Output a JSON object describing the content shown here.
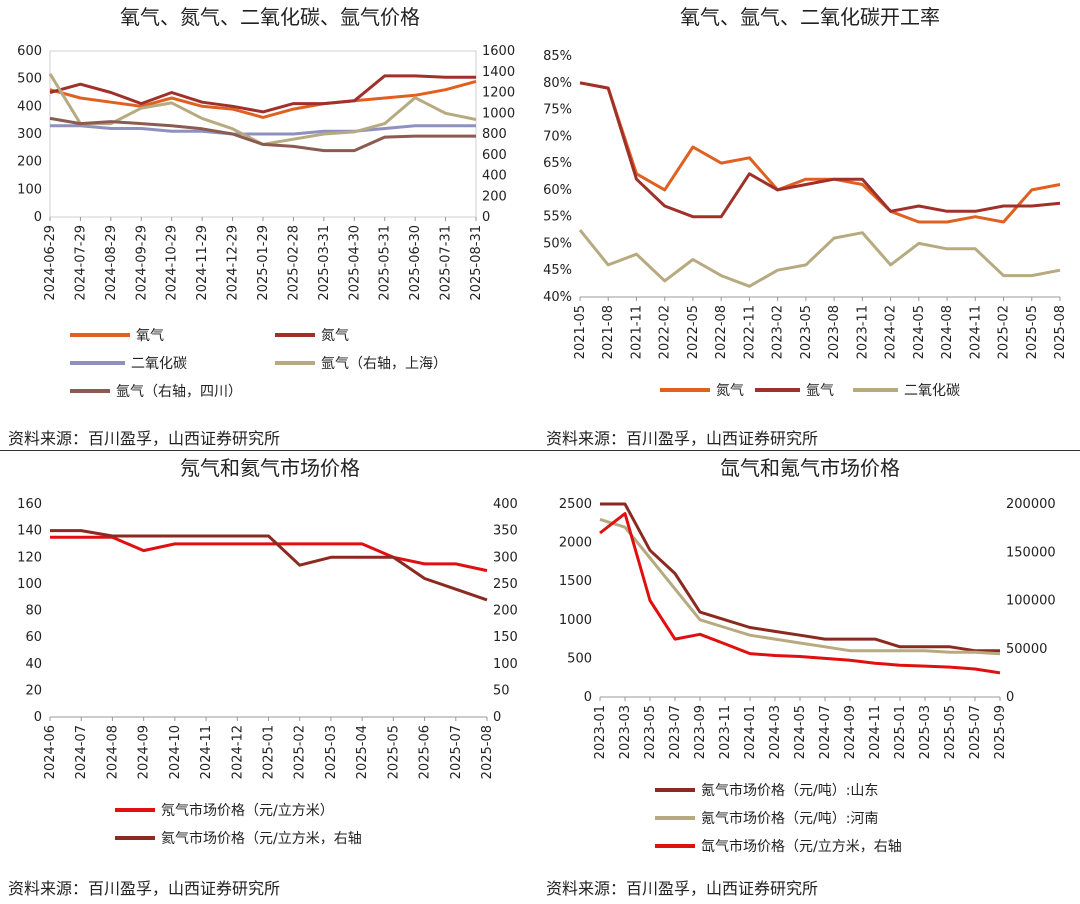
{
  "chart_data": [
    {
      "id": "p1",
      "type": "line",
      "title": "氧气、氮气、二氧化碳、氩气价格",
      "xlabel": "",
      "ylabel": "",
      "x": [
        "2024-06-29",
        "2024-07-29",
        "2024-08-29",
        "2024-09-29",
        "2024-10-29",
        "2024-11-29",
        "2024-12-29",
        "2025-01-29",
        "2025-02-28",
        "2025-03-31",
        "2025-04-30",
        "2025-05-31",
        "2025-06-30",
        "2025-07-31",
        "2025-08-31"
      ],
      "ylim": [
        0,
        600
      ],
      "y_ticks": [
        "0",
        "100",
        "200",
        "300",
        "400",
        "500",
        "600"
      ],
      "y2lim": [
        0,
        1600
      ],
      "y2_ticks": [
        "0",
        "200",
        "400",
        "600",
        "800",
        "1000",
        "1200",
        "1400",
        "1600"
      ],
      "legend_position": "bottom",
      "series": [
        {
          "name": "氧气",
          "color": "#e06020",
          "axis": "left",
          "values": [
            460,
            430,
            415,
            400,
            430,
            400,
            390,
            360,
            390,
            410,
            420,
            430,
            440,
            460,
            490
          ]
        },
        {
          "name": "氮气",
          "color": "#a0302a",
          "axis": "left",
          "values": [
            450,
            480,
            450,
            410,
            450,
            415,
            400,
            380,
            410,
            410,
            420,
            510,
            510,
            505,
            505
          ]
        },
        {
          "name": "二氧化碳",
          "color": "#9090c0",
          "axis": "left",
          "values": [
            330,
            330,
            320,
            320,
            310,
            310,
            300,
            300,
            300,
            310,
            310,
            320,
            330,
            330,
            330
          ]
        },
        {
          "name": "氩气（右轴，上海）",
          "color": "#b8aa80",
          "axis": "right",
          "values": [
            1380,
            900,
            900,
            1050,
            1100,
            950,
            850,
            700,
            750,
            800,
            820,
            900,
            1150,
            1000,
            940
          ]
        },
        {
          "name": "氩气（右轴，四川）",
          "color": "#8b5a50",
          "axis": "right",
          "values": [
            950,
            900,
            920,
            900,
            880,
            850,
            800,
            700,
            680,
            640,
            640,
            770,
            780,
            780,
            780
          ]
        }
      ],
      "source": "资料来源：百川盈孚，山西证券研究所"
    },
    {
      "id": "p2",
      "type": "line",
      "title": "氧气、氩气、二氧化碳开工率",
      "xlabel": "",
      "ylabel": "",
      "x": [
        "2021-05",
        "2021-08",
        "2021-11",
        "2022-02",
        "2022-05",
        "2022-08",
        "2022-11",
        "2023-02",
        "2023-05",
        "2023-08",
        "2023-11",
        "2024-02",
        "2024-05",
        "2024-08",
        "2024-11",
        "2025-02",
        "2025-05",
        "2025-08"
      ],
      "ylim": [
        40,
        85
      ],
      "y_ticks": [
        "40%",
        "45%",
        "50%",
        "55%",
        "60%",
        "65%",
        "70%",
        "75%",
        "80%",
        "85%"
      ],
      "legend_position": "bottom",
      "series": [
        {
          "name": "氮气",
          "color": "#e06020",
          "values": [
            80,
            79,
            63,
            60,
            68,
            65,
            66,
            60,
            62,
            62,
            61,
            56,
            54,
            54,
            55,
            54,
            60,
            61
          ]
        },
        {
          "name": "氩气",
          "color": "#a0302a",
          "values": [
            80,
            79,
            62,
            57,
            55,
            55,
            63,
            60,
            61,
            62,
            62,
            56,
            57,
            56,
            56,
            57,
            57,
            57.5
          ]
        },
        {
          "name": "二氧化碳",
          "color": "#b8aa80",
          "values": [
            52.5,
            46,
            48,
            43,
            47,
            44,
            42,
            45,
            46,
            51,
            52,
            46,
            50,
            49,
            49,
            44,
            44,
            45
          ]
        }
      ],
      "source": "资料来源：百川盈孚，山西证券研究所"
    },
    {
      "id": "p3",
      "type": "line",
      "title": "氖气和氦气市场价格",
      "xlabel": "",
      "ylabel": "",
      "x": [
        "2024-06",
        "2024-07",
        "2024-08",
        "2024-09",
        "2024-10",
        "2024-11",
        "2024-12",
        "2025-01",
        "2025-02",
        "2025-03",
        "2025-04",
        "2025-05",
        "2025-06",
        "2025-07",
        "2025-08"
      ],
      "ylim": [
        0,
        160
      ],
      "y_ticks": [
        "0",
        "20",
        "40",
        "60",
        "80",
        "100",
        "120",
        "140",
        "160"
      ],
      "y2lim": [
        0,
        400
      ],
      "y2_ticks": [
        "0",
        "50",
        "100",
        "150",
        "200",
        "250",
        "300",
        "350",
        "400"
      ],
      "legend_position": "bottom",
      "series": [
        {
          "name": "氖气市场价格（元/立方米）",
          "color": "#e01010",
          "axis": "left",
          "values": [
            135,
            135,
            135,
            125,
            130,
            130,
            130,
            130,
            130,
            130,
            130,
            120,
            115,
            115,
            110
          ]
        },
        {
          "name": "氦气市场价格（元/立方米，右轴",
          "color": "#8b2a20",
          "axis": "right",
          "values": [
            350,
            350,
            340,
            340,
            340,
            340,
            340,
            340,
            285,
            300,
            300,
            300,
            260,
            240,
            220
          ]
        }
      ],
      "source": "资料来源：百川盈孚，山西证券研究所"
    },
    {
      "id": "p4",
      "type": "line",
      "title": "氙气和氪气市场价格",
      "xlabel": "",
      "ylabel": "",
      "x": [
        "2023-01",
        "2023-03",
        "2023-05",
        "2023-07",
        "2023-09",
        "2023-11",
        "2024-01",
        "2024-03",
        "2024-05",
        "2024-07",
        "2024-09",
        "2024-11",
        "2025-01",
        "2025-03",
        "2025-05",
        "2025-07",
        "2025-09"
      ],
      "ylim": [
        0,
        2500
      ],
      "y_ticks": [
        "0",
        "500",
        "1000",
        "1500",
        "2000",
        "2500"
      ],
      "y2lim": [
        0,
        200000
      ],
      "y2_ticks": [
        "0",
        "50000",
        "100000",
        "150000",
        "200000"
      ],
      "legend_position": "bottom",
      "series": [
        {
          "name": "氪气市场价格（元/吨）:山东",
          "color": "#8b2a20",
          "axis": "left",
          "values": [
            2500,
            2500,
            1900,
            1600,
            1100,
            1000,
            900,
            850,
            800,
            750,
            750,
            750,
            650,
            650,
            650,
            600,
            600
          ]
        },
        {
          "name": "氪气市场价格（元/吨）:河南",
          "color": "#b8aa80",
          "axis": "left",
          "values": [
            2300,
            2200,
            1800,
            1400,
            1000,
            900,
            800,
            750,
            700,
            650,
            600,
            600,
            600,
            600,
            580,
            580,
            560
          ]
        },
        {
          "name": "氙气市场价格（元/立方米，右轴",
          "color": "#e01010",
          "axis": "right",
          "values": [
            170000,
            190000,
            100000,
            60000,
            65000,
            55000,
            45000,
            43000,
            42000,
            40000,
            38000,
            35000,
            33000,
            32000,
            31000,
            29000,
            25000
          ]
        }
      ],
      "source": "资料来源：百川盈孚，山西证券研究所"
    }
  ]
}
